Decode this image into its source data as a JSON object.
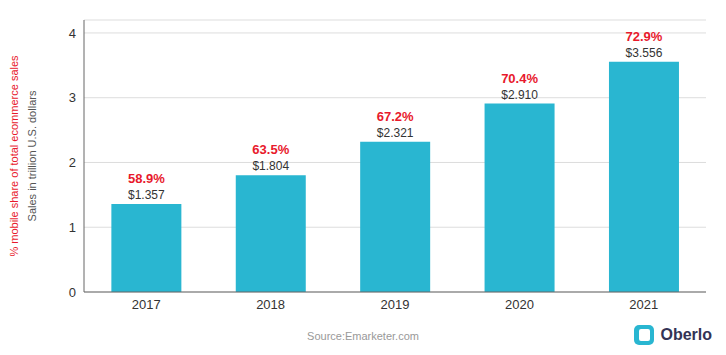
{
  "chart_data": {
    "type": "bar",
    "categories": [
      "2017",
      "2018",
      "2019",
      "2020",
      "2021"
    ],
    "values": [
      1.357,
      1.804,
      2.321,
      2.91,
      3.556
    ],
    "value_labels": [
      "$1.357",
      "$1.804",
      "$2.321",
      "$2.910",
      "$3.556"
    ],
    "data_labels": true,
    "color": "#29b6d1",
    "percent_labels": {
      "labels": [
        "58.9%",
        "63.5%",
        "67.2%",
        "70.4%",
        "72.9%"
      ],
      "color": "#e8192c"
    },
    "ylabel": "Sales in trillion U.S. dollars",
    "ylim": [
      0,
      4.2
    ],
    "yticks": [
      0,
      1,
      2,
      3,
      4
    ],
    "grid": true,
    "annotations": [
      {
        "text": "% mobile share of total ecommerce sales",
        "color": "#e8192c"
      },
      {
        "text": "Source:Emarketer.com",
        "color": "#999999"
      },
      {
        "text": "Oberlo",
        "color": "#333355"
      }
    ]
  }
}
